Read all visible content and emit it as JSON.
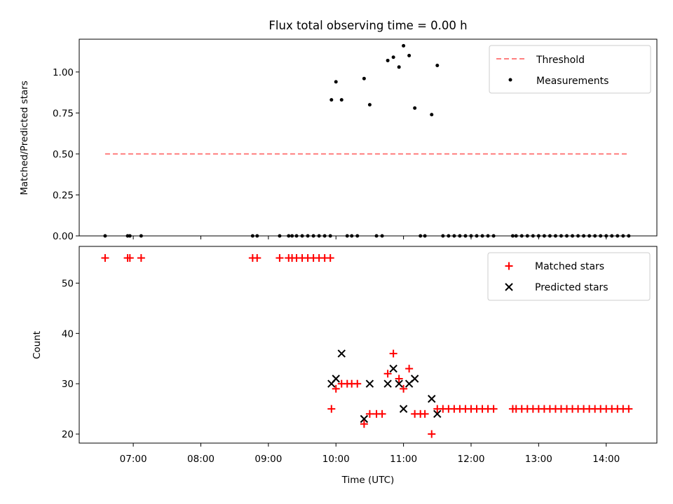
{
  "title": "Flux total observing time = 0.00 h",
  "chart_data": [
    {
      "type": "scatter",
      "ylabel": "Matched/Predicted stars",
      "xlabel": "",
      "xlim": [
        "06:12",
        "14:45"
      ],
      "ylim": [
        0,
        1.2
      ],
      "yticks": [
        0.0,
        0.25,
        0.5,
        0.75,
        1.0
      ],
      "ytick_labels": [
        "0.00",
        "0.25",
        "0.50",
        "0.75",
        "1.00"
      ],
      "legend": "top-right",
      "threshold": {
        "name": "Threshold",
        "color": "#ff8080",
        "style": "dashed",
        "y": 0.5,
        "x_range": [
          "06:35",
          "14:20"
        ]
      },
      "measurements": {
        "name": "Measurements",
        "color": "#000000",
        "points": [
          [
            "06:35",
            0.0
          ],
          [
            "06:55",
            0.0
          ],
          [
            "06:57",
            0.0
          ],
          [
            "07:07",
            0.0
          ],
          [
            "08:46",
            0.0
          ],
          [
            "08:50",
            0.0
          ],
          [
            "09:10",
            0.0
          ],
          [
            "09:18",
            0.0
          ],
          [
            "09:21",
            0.0
          ],
          [
            "09:25",
            0.0
          ],
          [
            "09:30",
            0.0
          ],
          [
            "09:35",
            0.0
          ],
          [
            "09:40",
            0.0
          ],
          [
            "09:45",
            0.0
          ],
          [
            "09:50",
            0.0
          ],
          [
            "09:55",
            0.0
          ],
          [
            "09:56",
            0.83
          ],
          [
            "10:00",
            0.94
          ],
          [
            "10:05",
            0.83
          ],
          [
            "10:10",
            0.0
          ],
          [
            "10:14",
            0.0
          ],
          [
            "10:19",
            0.0
          ],
          [
            "10:25",
            0.96
          ],
          [
            "10:30",
            0.8
          ],
          [
            "10:36",
            0.0
          ],
          [
            "10:41",
            0.0
          ],
          [
            "10:46",
            1.07
          ],
          [
            "10:51",
            1.09
          ],
          [
            "10:56",
            1.03
          ],
          [
            "11:00",
            1.16
          ],
          [
            "11:05",
            1.1
          ],
          [
            "11:10",
            0.78
          ],
          [
            "11:15",
            0.0
          ],
          [
            "11:19",
            0.0
          ],
          [
            "11:25",
            0.74
          ],
          [
            "11:30",
            1.04
          ],
          [
            "11:35",
            0.0
          ],
          [
            "11:40",
            0.0
          ],
          [
            "11:45",
            0.0
          ],
          [
            "11:50",
            0.0
          ],
          [
            "11:55",
            0.0
          ],
          [
            "12:00",
            0.0
          ],
          [
            "12:05",
            0.0
          ],
          [
            "12:10",
            0.0
          ],
          [
            "12:15",
            0.0
          ],
          [
            "12:20",
            0.0
          ],
          [
            "12:37",
            0.0
          ],
          [
            "12:40",
            0.0
          ],
          [
            "12:45",
            0.0
          ],
          [
            "12:50",
            0.0
          ],
          [
            "12:55",
            0.0
          ],
          [
            "13:00",
            0.0
          ],
          [
            "13:05",
            0.0
          ],
          [
            "13:10",
            0.0
          ],
          [
            "13:15",
            0.0
          ],
          [
            "13:20",
            0.0
          ],
          [
            "13:25",
            0.0
          ],
          [
            "13:30",
            0.0
          ],
          [
            "13:35",
            0.0
          ],
          [
            "13:40",
            0.0
          ],
          [
            "13:45",
            0.0
          ],
          [
            "13:50",
            0.0
          ],
          [
            "13:55",
            0.0
          ],
          [
            "14:00",
            0.0
          ],
          [
            "14:05",
            0.0
          ],
          [
            "14:10",
            0.0
          ],
          [
            "14:15",
            0.0
          ],
          [
            "14:20",
            0.0
          ]
        ]
      }
    },
    {
      "type": "scatter",
      "ylabel": "Count",
      "xlabel": "Time (UTC)",
      "xlim": [
        "06:12",
        "14:45"
      ],
      "ylim": [
        18.2,
        57.3
      ],
      "yticks": [
        20,
        30,
        40,
        50
      ],
      "ytick_labels": [
        "20",
        "30",
        "40",
        "50"
      ],
      "xticks": [
        "07:00",
        "08:00",
        "09:00",
        "10:00",
        "11:00",
        "12:00",
        "13:00",
        "14:00"
      ],
      "legend": "top-right",
      "series": [
        {
          "name": "Matched stars",
          "marker": "+",
          "color": "#ff0000",
          "points": [
            [
              "06:35",
              55
            ],
            [
              "06:55",
              55
            ],
            [
              "06:57",
              55
            ],
            [
              "07:07",
              55
            ],
            [
              "08:46",
              55
            ],
            [
              "08:50",
              55
            ],
            [
              "09:10",
              55
            ],
            [
              "09:18",
              55
            ],
            [
              "09:21",
              55
            ],
            [
              "09:25",
              55
            ],
            [
              "09:30",
              55
            ],
            [
              "09:35",
              55
            ],
            [
              "09:40",
              55
            ],
            [
              "09:45",
              55
            ],
            [
              "09:50",
              55
            ],
            [
              "09:55",
              55
            ],
            [
              "09:56",
              25
            ],
            [
              "10:00",
              29
            ],
            [
              "10:05",
              30
            ],
            [
              "10:10",
              30
            ],
            [
              "10:14",
              30
            ],
            [
              "10:19",
              30
            ],
            [
              "10:25",
              22
            ],
            [
              "10:30",
              24
            ],
            [
              "10:36",
              24
            ],
            [
              "10:41",
              24
            ],
            [
              "10:46",
              32
            ],
            [
              "10:51",
              36
            ],
            [
              "10:56",
              31
            ],
            [
              "11:00",
              29
            ],
            [
              "11:05",
              33
            ],
            [
              "11:10",
              24
            ],
            [
              "11:15",
              24
            ],
            [
              "11:19",
              24
            ],
            [
              "11:25",
              20
            ],
            [
              "11:30",
              25
            ],
            [
              "11:35",
              25
            ],
            [
              "11:40",
              25
            ],
            [
              "11:45",
              25
            ],
            [
              "11:50",
              25
            ],
            [
              "11:55",
              25
            ],
            [
              "12:00",
              25
            ],
            [
              "12:05",
              25
            ],
            [
              "12:10",
              25
            ],
            [
              "12:15",
              25
            ],
            [
              "12:20",
              25
            ],
            [
              "12:37",
              25
            ],
            [
              "12:40",
              25
            ],
            [
              "12:45",
              25
            ],
            [
              "12:50",
              25
            ],
            [
              "12:55",
              25
            ],
            [
              "13:00",
              25
            ],
            [
              "13:05",
              25
            ],
            [
              "13:10",
              25
            ],
            [
              "13:15",
              25
            ],
            [
              "13:20",
              25
            ],
            [
              "13:25",
              25
            ],
            [
              "13:30",
              25
            ],
            [
              "13:35",
              25
            ],
            [
              "13:40",
              25
            ],
            [
              "13:45",
              25
            ],
            [
              "13:50",
              25
            ],
            [
              "13:55",
              25
            ],
            [
              "14:00",
              25
            ],
            [
              "14:05",
              25
            ],
            [
              "14:10",
              25
            ],
            [
              "14:15",
              25
            ],
            [
              "14:20",
              25
            ]
          ]
        },
        {
          "name": "Predicted stars",
          "marker": "x",
          "color": "#000000",
          "points": [
            [
              "09:56",
              30
            ],
            [
              "10:00",
              31
            ],
            [
              "10:05",
              36
            ],
            [
              "10:25",
              23
            ],
            [
              "10:30",
              30
            ],
            [
              "10:46",
              30
            ],
            [
              "10:51",
              33
            ],
            [
              "10:56",
              30
            ],
            [
              "11:00",
              25
            ],
            [
              "11:05",
              30
            ],
            [
              "11:10",
              31
            ],
            [
              "11:25",
              27
            ],
            [
              "11:30",
              24
            ]
          ]
        }
      ]
    }
  ]
}
